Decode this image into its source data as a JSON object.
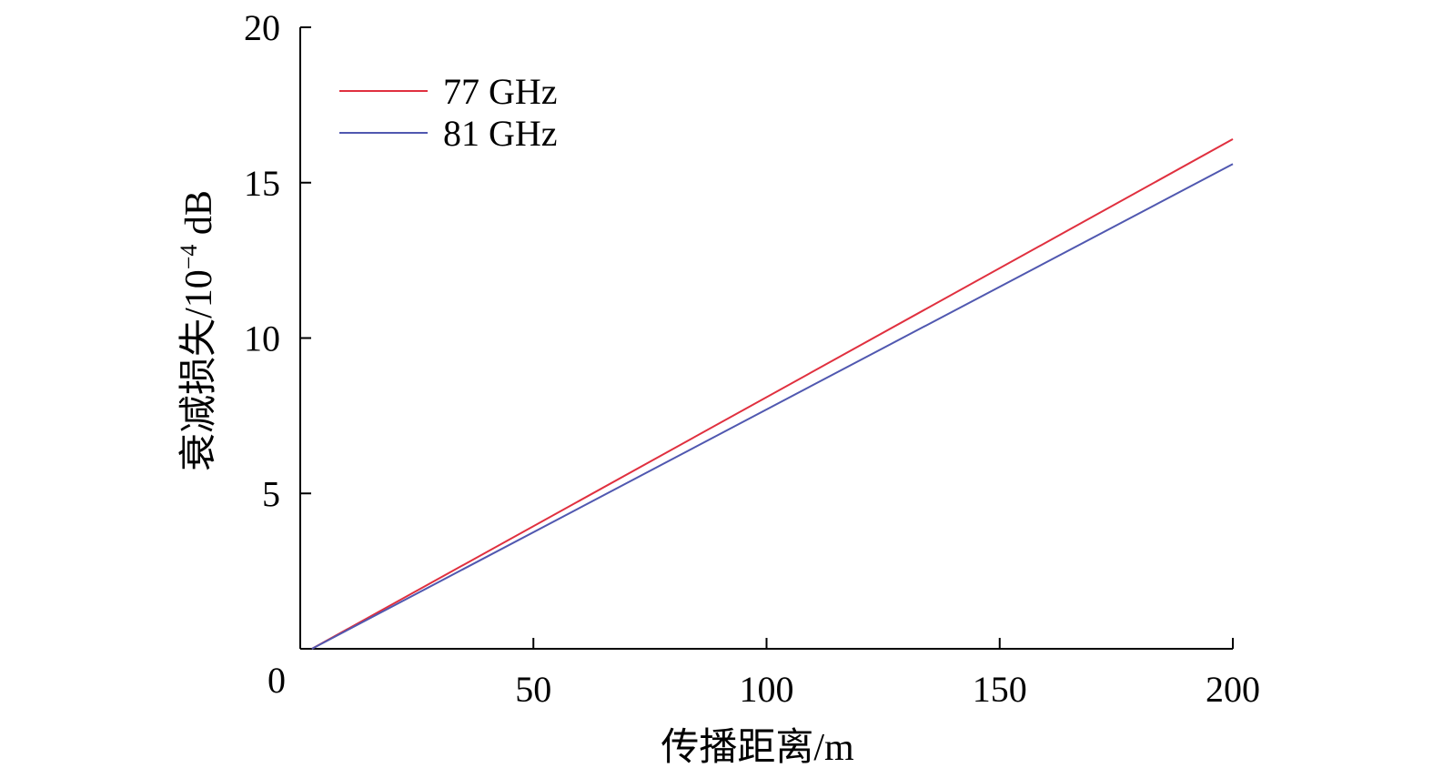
{
  "chart_data": {
    "type": "line",
    "xlabel": "传播距离/m",
    "ylabel_main": "衰减损失/10",
    "ylabel_sup": "−4",
    "ylabel_unit": " dB",
    "xlim": [
      0,
      200
    ],
    "ylim": [
      0,
      20
    ],
    "origin_label": "0",
    "x_ticks": [
      50,
      100,
      150,
      200
    ],
    "x_tick_labels": [
      "50",
      "100",
      "150",
      "200"
    ],
    "y_ticks": [
      5,
      10,
      15,
      20
    ],
    "y_tick_labels": [
      "5",
      "10",
      "15",
      "20"
    ],
    "grid": false,
    "legend_position": "top-left",
    "series": [
      {
        "name": "77 GHz",
        "color": "#e0303f",
        "x": [
          2.5,
          200
        ],
        "y": [
          0,
          16.4
        ]
      },
      {
        "name": "81 GHz",
        "color": "#5058b0",
        "x": [
          2.5,
          200
        ],
        "y": [
          0,
          15.6
        ]
      }
    ]
  }
}
